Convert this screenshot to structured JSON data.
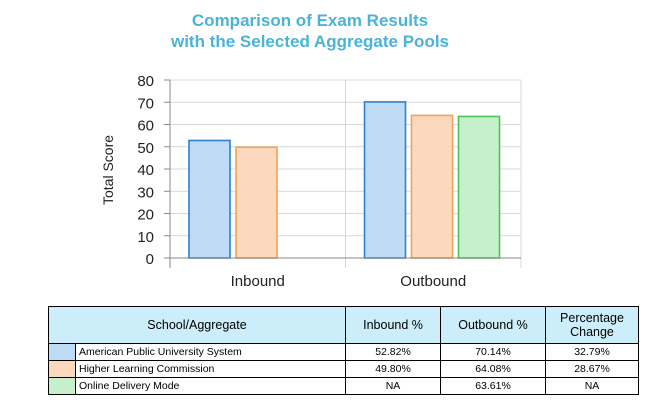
{
  "chart_data": {
    "type": "bar",
    "title_lines": [
      "Comparison of Exam Results",
      "with the Selected Aggregate Pools"
    ],
    "ylabel": "Total Score",
    "xlabel": "",
    "ylim": [
      0,
      80
    ],
    "yticks": [
      0,
      10,
      20,
      30,
      40,
      50,
      60,
      70,
      80
    ],
    "grid": true,
    "categories": [
      "Inbound",
      "Outbound"
    ],
    "series": [
      {
        "name": "American Public University System",
        "values": [
          52.82,
          70.14
        ],
        "fill": "#bfdcf7",
        "stroke": "#2f7fd0"
      },
      {
        "name": "Higher Learning Commission",
        "values": [
          49.8,
          64.08
        ],
        "fill": "#fcd9bd",
        "stroke": "#f0a25a"
      },
      {
        "name": "Online Delivery Mode",
        "values": [
          null,
          63.61
        ],
        "fill": "#c6efcc",
        "stroke": "#4fc35a"
      }
    ]
  },
  "table": {
    "headers": [
      "School/Aggregate",
      "Inbound %",
      "Outbound %",
      "Percentage Change"
    ],
    "rows": [
      {
        "name": "American Public University System",
        "inbound": "52.82%",
        "outbound": "70.14%",
        "change": "32.79%",
        "color": "#bfdcf7"
      },
      {
        "name": "Higher Learning Commission",
        "inbound": "49.80%",
        "outbound": "64.08%",
        "change": "28.67%",
        "color": "#fcd9bd"
      },
      {
        "name": "Online Delivery Mode",
        "inbound": "NA",
        "outbound": "63.61%",
        "change": "NA",
        "color": "#c6efcc"
      }
    ]
  }
}
